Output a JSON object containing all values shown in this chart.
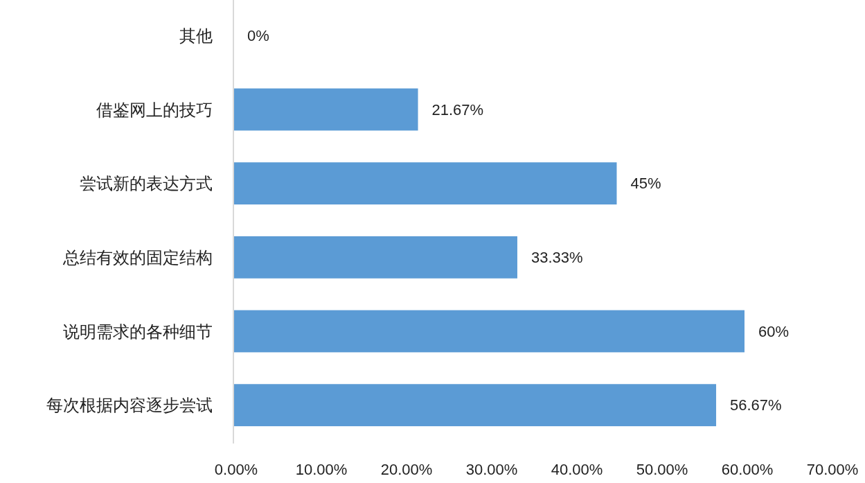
{
  "chart_data": {
    "type": "bar",
    "orientation": "horizontal",
    "categories": [
      "其他",
      "借鉴网上的技巧",
      "尝试新的表达方式",
      "总结有效的固定结构",
      "说明需求的各种细节",
      "每次根据内容逐步尝试"
    ],
    "values": [
      0,
      21.67,
      45,
      33.33,
      60,
      56.67
    ],
    "value_labels": [
      "0%",
      "21.67%",
      "45%",
      "33.33%",
      "60%",
      "56.67%"
    ],
    "color": "#5b9bd5",
    "xlim": [
      0,
      70
    ],
    "xticks": [
      {
        "value": 0,
        "label": "0.00%"
      },
      {
        "value": 10,
        "label": "10.00%"
      },
      {
        "value": 20,
        "label": "20.00%"
      },
      {
        "value": 30,
        "label": "30.00%"
      },
      {
        "value": 40,
        "label": "40.00%"
      },
      {
        "value": 50,
        "label": "50.00%"
      },
      {
        "value": 60,
        "label": "60.00%"
      },
      {
        "value": 70,
        "label": "70.00%"
      }
    ],
    "grid": false
  }
}
